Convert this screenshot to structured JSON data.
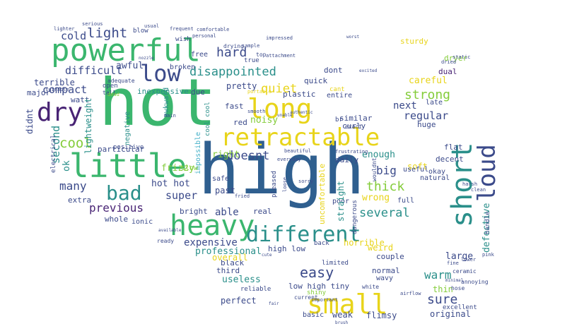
{
  "palette": {
    "teal": "#2a8f8a",
    "green": "#3bb66e",
    "blue": "#2f5f8f",
    "navy": "#3b4a8a",
    "purple": "#482374",
    "yellow": "#e8d41a",
    "lime": "#84cc3a",
    "cyan": "#45b0c8"
  },
  "words": [
    {
      "text": "hot",
      "color": "green"
    },
    {
      "text": "high",
      "color": "blue"
    },
    {
      "text": "powerful",
      "color": "green"
    },
    {
      "text": "retractable",
      "color": "yellow"
    },
    {
      "text": "little",
      "color": "green"
    },
    {
      "text": "long",
      "color": "yellow"
    },
    {
      "text": "heavy",
      "color": "green"
    },
    {
      "text": "small",
      "color": "yellow"
    },
    {
      "text": "low",
      "color": "navy"
    },
    {
      "text": "dry",
      "color": "purple"
    },
    {
      "text": "short",
      "color": "teal"
    },
    {
      "text": "loud",
      "color": "navy"
    },
    {
      "text": "different",
      "color": "teal"
    },
    {
      "text": "bad",
      "color": "teal"
    },
    {
      "text": "disappointed",
      "color": "teal"
    },
    {
      "text": "light",
      "color": "navy"
    },
    {
      "text": "hard",
      "color": "navy"
    },
    {
      "text": "cold",
      "color": "navy"
    },
    {
      "text": "quiet",
      "color": "yellow"
    },
    {
      "text": "cool",
      "color": "lime"
    },
    {
      "text": "compact",
      "color": "navy"
    },
    {
      "text": "difficult",
      "color": "navy"
    },
    {
      "text": "strong",
      "color": "lime"
    },
    {
      "text": "careful",
      "color": "yellow"
    },
    {
      "text": "dryer",
      "color": "lime"
    },
    {
      "text": "dual",
      "color": "purple"
    },
    {
      "text": "next",
      "color": "navy"
    },
    {
      "text": "regular",
      "color": "navy"
    },
    {
      "text": "huge",
      "color": "navy"
    },
    {
      "text": "curly",
      "color": "navy"
    },
    {
      "text": "similar",
      "color": "navy"
    },
    {
      "text": "exact",
      "color": "navy"
    },
    {
      "text": "enough",
      "color": "teal"
    },
    {
      "text": "doesnt",
      "color": "navy"
    },
    {
      "text": "right",
      "color": "lime"
    },
    {
      "text": "big",
      "color": "navy"
    },
    {
      "text": "thick",
      "color": "lime"
    },
    {
      "text": "wrong",
      "color": "yellow"
    },
    {
      "text": "several",
      "color": "teal"
    },
    {
      "text": "able",
      "color": "navy"
    },
    {
      "text": "super",
      "color": "navy"
    },
    {
      "text": "hot hot",
      "color": "navy"
    },
    {
      "text": "many",
      "color": "navy"
    },
    {
      "text": "previous",
      "color": "purple"
    },
    {
      "text": "expensive",
      "color": "navy"
    },
    {
      "text": "professional",
      "color": "teal"
    },
    {
      "text": "easy",
      "color": "navy"
    },
    {
      "text": "warm",
      "color": "teal"
    },
    {
      "text": "sure",
      "color": "navy"
    },
    {
      "text": "large",
      "color": "navy"
    },
    {
      "text": "thin",
      "color": "lime"
    },
    {
      "text": "defective",
      "color": "teal"
    },
    {
      "text": "second",
      "color": "teal"
    },
    {
      "text": "ok",
      "color": "teal"
    },
    {
      "text": "useless",
      "color": "teal"
    },
    {
      "text": "perfect",
      "color": "navy"
    },
    {
      "text": "low high tiny",
      "color": "navy"
    },
    {
      "text": "weak",
      "color": "navy"
    },
    {
      "text": "flimsy",
      "color": "navy"
    },
    {
      "text": "original",
      "color": "navy"
    },
    {
      "text": "basic",
      "color": "navy"
    },
    {
      "text": "couple",
      "color": "navy"
    },
    {
      "text": "normal",
      "color": "navy"
    },
    {
      "text": "wavy",
      "color": "navy"
    },
    {
      "text": "black",
      "color": "navy"
    },
    {
      "text": "third",
      "color": "navy"
    },
    {
      "text": "overall",
      "color": "yellow"
    },
    {
      "text": "high low",
      "color": "navy"
    },
    {
      "text": "horrible",
      "color": "yellow"
    },
    {
      "text": "weird",
      "color": "yellow"
    },
    {
      "text": "limited",
      "color": "navy"
    },
    {
      "text": "pretty",
      "color": "navy"
    },
    {
      "text": "fast",
      "color": "navy"
    },
    {
      "text": "red",
      "color": "navy"
    },
    {
      "text": "noisy",
      "color": "lime"
    },
    {
      "text": "plastic",
      "color": "navy"
    },
    {
      "text": "quick",
      "color": "navy"
    },
    {
      "text": "entire",
      "color": "navy"
    },
    {
      "text": "dont",
      "color": "navy"
    },
    {
      "text": "true",
      "color": "navy"
    },
    {
      "text": "sturdy",
      "color": "yellow"
    },
    {
      "text": "top",
      "color": "navy"
    },
    {
      "text": "free",
      "color": "navy"
    },
    {
      "text": "wish",
      "color": "navy"
    },
    {
      "text": "blow",
      "color": "navy"
    },
    {
      "text": "awful",
      "color": "navy"
    },
    {
      "text": "terrible",
      "color": "navy"
    },
    {
      "text": "major",
      "color": "navy"
    },
    {
      "text": "watt",
      "color": "navy"
    },
    {
      "text": "due",
      "color": "navy"
    },
    {
      "text": "inexpensive",
      "color": "teal"
    },
    {
      "text": "broken",
      "color": "navy"
    },
    {
      "text": "didnt",
      "color": "navy"
    },
    {
      "text": "electrical",
      "color": "navy"
    },
    {
      "text": "lightweight",
      "color": "teal"
    },
    {
      "text": "frizzy",
      "color": "lime"
    },
    {
      "text": "particular",
      "color": "navy"
    },
    {
      "text": "impossible",
      "color": "cyan"
    },
    {
      "text": "slow",
      "color": "lime"
    },
    {
      "text": "safe",
      "color": "navy"
    },
    {
      "text": "past",
      "color": "navy"
    },
    {
      "text": "bright",
      "color": "navy"
    },
    {
      "text": "extra",
      "color": "navy"
    },
    {
      "text": "ionic",
      "color": "navy"
    },
    {
      "text": "whole",
      "color": "navy"
    },
    {
      "text": "real",
      "color": "navy"
    },
    {
      "text": "poor",
      "color": "navy"
    },
    {
      "text": "full",
      "color": "navy"
    },
    {
      "text": "natural",
      "color": "navy"
    },
    {
      "text": "soft",
      "color": "yellow"
    },
    {
      "text": "okay",
      "color": "navy"
    },
    {
      "text": "decent",
      "color": "navy"
    },
    {
      "text": "flat",
      "color": "navy"
    },
    {
      "text": "daily",
      "color": "navy"
    },
    {
      "text": "ready",
      "color": "navy"
    },
    {
      "text": "back",
      "color": "navy"
    },
    {
      "text": "straight",
      "color": "teal"
    },
    {
      "text": "uncomfortable",
      "color": "yellow"
    },
    {
      "text": "excellent",
      "color": "navy"
    },
    {
      "text": "ceramic",
      "color": "navy"
    },
    {
      "text": "cant",
      "color": "yellow"
    },
    {
      "text": "useful",
      "color": "navy"
    },
    {
      "text": "pleased",
      "color": "navy"
    },
    {
      "text": "handle",
      "color": "navy"
    },
    {
      "text": "late",
      "color": "navy"
    },
    {
      "text": "positive",
      "color": "navy"
    },
    {
      "text": "negative",
      "color": "teal"
    },
    {
      "text": "cool cool",
      "color": "teal"
    },
    {
      "text": "awkward",
      "color": "teal"
    },
    {
      "text": "br",
      "color": "navy"
    },
    {
      "text": "main",
      "color": "navy"
    },
    {
      "text": "open",
      "color": "navy"
    },
    {
      "text": "tall",
      "color": "navy"
    },
    {
      "text": "adequate",
      "color": "navy"
    },
    {
      "text": "dead",
      "color": "lime"
    },
    {
      "text": "current",
      "color": "navy"
    },
    {
      "text": "shiny",
      "color": "lime"
    },
    {
      "text": "reliable",
      "color": "navy"
    },
    {
      "text": "wouldnt",
      "color": "navy"
    },
    {
      "text": "white",
      "color": "navy"
    },
    {
      "text": "loose",
      "color": "navy"
    },
    {
      "text": "smooth",
      "color": "navy"
    },
    {
      "text": "portable",
      "color": "yellow"
    },
    {
      "text": "dangerous",
      "color": "navy"
    },
    {
      "text": "hose",
      "color": "navy"
    },
    {
      "text": "annoying",
      "color": "navy"
    },
    {
      "text": "lower",
      "color": "navy"
    },
    {
      "text": "fine",
      "color": "navy"
    },
    {
      "text": "pink",
      "color": "navy"
    },
    {
      "text": "clean",
      "color": "navy"
    },
    {
      "text": "static",
      "color": "navy"
    },
    {
      "text": "personal",
      "color": "navy"
    },
    {
      "text": "frequent",
      "color": "navy"
    },
    {
      "text": "usual",
      "color": "navy"
    },
    {
      "text": "comfortable",
      "color": "navy"
    },
    {
      "text": "attachment",
      "color": "navy"
    },
    {
      "text": "sample",
      "color": "navy"
    },
    {
      "text": "impressed",
      "color": "navy"
    },
    {
      "text": "drying",
      "color": "navy"
    },
    {
      "text": "nozzle",
      "color": "navy"
    },
    {
      "text": "excited",
      "color": "navy"
    },
    {
      "text": "harsh",
      "color": "navy"
    },
    {
      "text": "important",
      "color": "navy"
    },
    {
      "text": "available",
      "color": "navy"
    },
    {
      "text": "frustrating",
      "color": "navy"
    },
    {
      "text": "beautiful",
      "color": "navy"
    },
    {
      "text": "sorry",
      "color": "navy"
    },
    {
      "text": "brush",
      "color": "navy"
    },
    {
      "text": "everyday",
      "color": "navy"
    },
    {
      "text": "minimal",
      "color": "navy"
    },
    {
      "text": "suitable",
      "color": "navy"
    },
    {
      "text": "authentic",
      "color": "navy"
    },
    {
      "text": "unable",
      "color": "navy"
    },
    {
      "text": "cute",
      "color": "navy"
    },
    {
      "text": "fair",
      "color": "navy"
    },
    {
      "text": "fried",
      "color": "navy"
    },
    {
      "text": "lighter",
      "color": "navy"
    },
    {
      "text": "serious",
      "color": "navy"
    },
    {
      "text": "dried",
      "color": "navy"
    },
    {
      "text": "worst",
      "color": "navy"
    },
    {
      "text": "airflow",
      "color": "navy"
    }
  ]
}
